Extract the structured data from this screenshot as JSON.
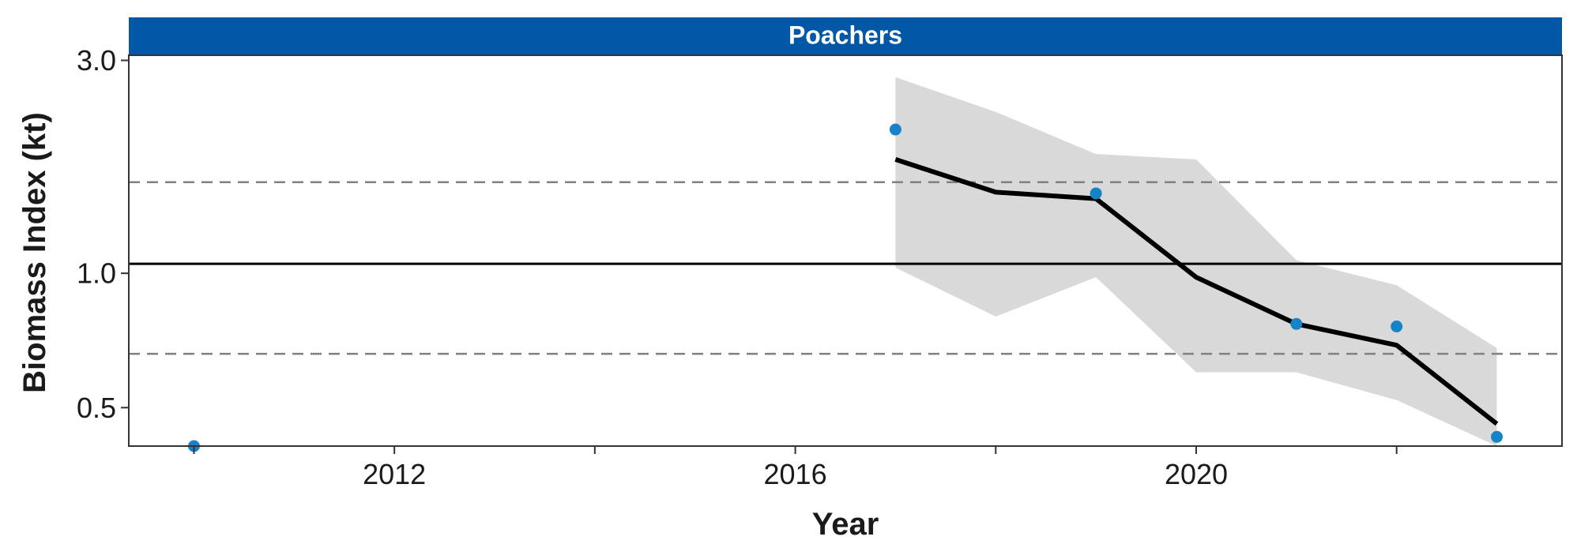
{
  "chart_data": {
    "type": "line",
    "panel_title": "Poachers",
    "xlabel": "Year",
    "ylabel": "Biomass Index (kt)",
    "x_scale": "linear",
    "y_scale": "log",
    "xlim": [
      2009.35,
      2023.65
    ],
    "ylim": [
      0.41,
      3.08
    ],
    "x_ticks": [
      2012,
      2016,
      2020
    ],
    "x_minor_ticks": [
      2010,
      2014,
      2018,
      2022
    ],
    "y_ticks": [
      0.5,
      1.0,
      3.0
    ],
    "y_tick_labels": [
      "0.5",
      "1.0",
      "3.0"
    ],
    "grid": false,
    "reference_lines": [
      {
        "name": "mean",
        "y": 1.05,
        "style": "solid",
        "color": "#000000"
      },
      {
        "name": "upper",
        "y": 1.6,
        "style": "dashed",
        "color": "#808080"
      },
      {
        "name": "lower",
        "y": 0.66,
        "style": "dashed",
        "color": "#808080"
      }
    ],
    "observed_points": {
      "color": "#1583C6",
      "x": [
        2010,
        2017,
        2019,
        2021,
        2022,
        2023
      ],
      "y": [
        0.41,
        2.1,
        1.51,
        0.77,
        0.76,
        0.43
      ]
    },
    "fitted_line": {
      "color": "#000000",
      "x": [
        2017,
        2018,
        2019,
        2020,
        2021,
        2022,
        2023
      ],
      "y": [
        1.8,
        1.52,
        1.47,
        0.98,
        0.77,
        0.69,
        0.46
      ]
    },
    "confidence_band": {
      "color": "#D9D9D9",
      "x": [
        2017,
        2018,
        2019,
        2020,
        2021,
        2022,
        2023
      ],
      "lower": [
        1.03,
        0.8,
        0.98,
        0.6,
        0.6,
        0.52,
        0.41
      ],
      "upper": [
        2.75,
        2.3,
        1.85,
        1.8,
        1.07,
        0.94,
        0.68
      ]
    },
    "colors": {
      "strip": "#0257A6",
      "points": "#1583C6",
      "band": "#D9D9D9",
      "line": "#000000",
      "dashed": "#808080"
    }
  }
}
